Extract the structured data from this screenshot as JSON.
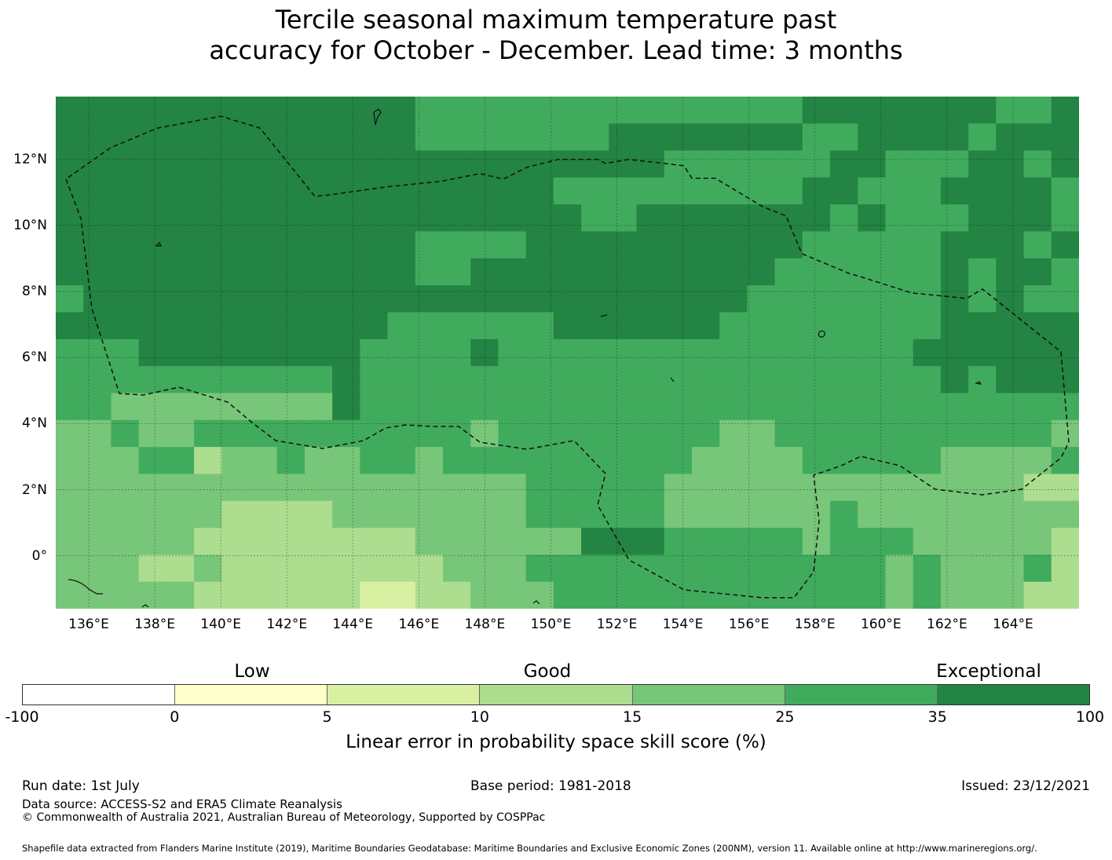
{
  "title_line1": "Tercile seasonal maximum temperature past",
  "title_line2": "accuracy for October - December. Lead time: 3 months",
  "map": {
    "lon_range": [
      135.0,
      166.0
    ],
    "lat_range": [
      -1.6,
      13.9
    ],
    "x_ticks": [
      "136°E",
      "138°E",
      "140°E",
      "142°E",
      "144°E",
      "146°E",
      "148°E",
      "150°E",
      "152°E",
      "154°E",
      "156°E",
      "158°E",
      "160°E",
      "162°E",
      "164°E"
    ],
    "y_ticks": [
      "12°N",
      "10°N",
      "8°N",
      "6°N",
      "4°N",
      "2°N",
      "0°"
    ],
    "eez_boundary": "dashed",
    "gridlines": true
  },
  "colorbar": {
    "categories": [
      "Low",
      "Good",
      "Exceptional"
    ],
    "ticks": [
      "-100",
      "0",
      "5",
      "10",
      "15",
      "25",
      "35",
      "100"
    ],
    "colors": [
      "#ffffff",
      "#ffffcc",
      "#d9f0a3",
      "#addd8e",
      "#78c679",
      "#41ab5d",
      "#238443"
    ],
    "label": "Linear error in probability space skill score (%)"
  },
  "footer": {
    "run_date": "Run date: 1st July",
    "base_period": "Base period: 1981-2018",
    "issued": "Issued: 23/12/2021",
    "data_source": "Data source: ACCESS-S2 and ERA5 Climate Reanalysis",
    "copyright": "© Commonwealth of Australia 2021, Australian Bureau of Meteorology, Supported by COSPPac",
    "shapefile": "Shapefile data extracted from Flanders Marine Institute (2019), Maritime Boundaries Geodatabase: Maritime Boundaries and Exclusive Economic Zones (200NM), version 11. Available online at http://www.marineregions.org/."
  }
}
